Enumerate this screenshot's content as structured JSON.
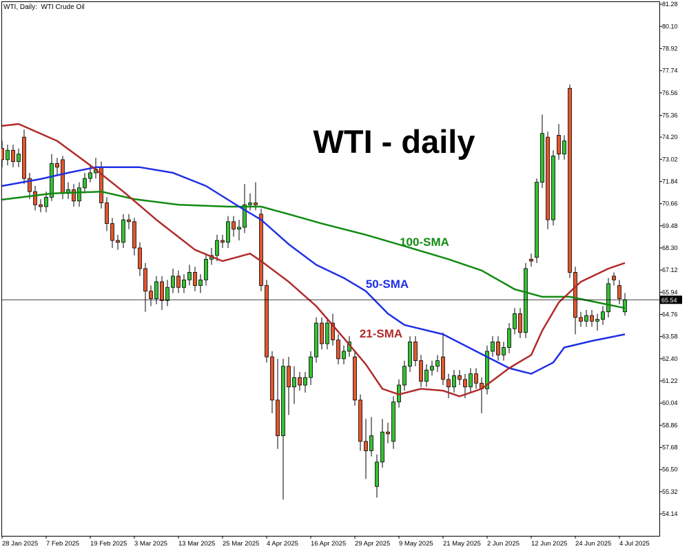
{
  "chart_data": {
    "type": "candlestick",
    "header": "WTI, Daily:  WTI Crude Oil",
    "title": "WTI - daily",
    "up_color": "#35c035",
    "down_color": "#e2572c",
    "categories": [
      "28 Jan 2025",
      null,
      null,
      null,
      null,
      null,
      null,
      null,
      "7 Feb 2025",
      null,
      null,
      null,
      null,
      null,
      null,
      null,
      "19 Feb 2025",
      null,
      null,
      null,
      null,
      null,
      null,
      null,
      "3 Mar 2025",
      null,
      null,
      null,
      null,
      null,
      null,
      null,
      "13 Mar 2025",
      null,
      null,
      null,
      null,
      null,
      null,
      null,
      "25 Mar 2025",
      null,
      null,
      null,
      null,
      null,
      null,
      null,
      "4 Apr 2025",
      null,
      null,
      null,
      null,
      null,
      null,
      null,
      "16 Apr 2025",
      null,
      null,
      null,
      null,
      null,
      null,
      null,
      "29 Apr 2025",
      null,
      null,
      null,
      null,
      null,
      null,
      null,
      "9 May 2025",
      null,
      null,
      null,
      null,
      null,
      null,
      null,
      "21 May 2025",
      null,
      null,
      null,
      null,
      null,
      null,
      null,
      "2 Jun 2025",
      null,
      null,
      null,
      null,
      null,
      null,
      null,
      "12 Jun 2025",
      null,
      null,
      null,
      null,
      null,
      null,
      null,
      "24 Jun 2025",
      null,
      null,
      null,
      null,
      null,
      null,
      null,
      "4 Jul 2025",
      null
    ],
    "open": [
      73.6,
      73.0,
      73.5,
      72.9,
      74.2,
      72.0,
      71.3,
      70.6,
      70.5,
      71.0,
      72.8,
      73.0,
      71.2,
      71.4,
      70.8,
      71.5,
      72.0,
      72.3,
      72.6,
      70.7,
      69.6,
      68.7,
      68.6,
      69.8,
      69.7,
      68.3,
      67.2,
      66.0,
      65.6,
      66.5,
      65.5,
      66.2,
      66.8,
      66.2,
      66.6,
      67.0,
      66.3,
      66.6,
      67.7,
      67.9,
      68.7,
      68.6,
      69.7,
      69.3,
      69.4,
      70.6,
      70.7,
      70.1,
      66.3,
      62.5,
      60.2,
      58.3,
      62.0,
      60.9,
      61.4,
      61.0,
      61.4,
      62.5,
      64.3,
      63.2,
      64.3,
      63.4,
      62.4,
      62.8,
      62.5,
      60.2,
      58.0,
      57.5,
      55.6,
      56.9,
      58.5,
      58.0,
      60.1,
      61.0,
      62.0,
      63.3,
      62.3,
      61.2,
      61.8,
      62.0,
      62.5,
      61.3,
      60.9,
      61.5,
      61.3,
      60.9,
      61.6,
      61.1,
      60.8,
      62.8,
      63.3,
      62.6,
      63.0,
      64.0,
      64.8,
      63.8,
      67.7,
      67.8,
      71.8,
      74.2,
      69.8,
      74.3,
      73.3,
      76.8,
      67.0,
      64.6,
      64.4,
      64.7,
      64.4,
      64.5,
      64.9,
      66.8,
      66.3,
      64.9
    ],
    "high": [
      74.0,
      73.8,
      73.8,
      73.6,
      74.6,
      72.3,
      71.6,
      70.9,
      71.3,
      73.3,
      73.1,
      73.2,
      71.8,
      71.7,
      71.8,
      72.3,
      72.7,
      73.1,
      72.9,
      71.0,
      69.9,
      69.0,
      70.1,
      70.1,
      69.9,
      68.6,
      67.5,
      66.3,
      66.8,
      66.8,
      66.6,
      67.2,
      67.1,
      66.9,
      67.4,
      67.3,
      66.9,
      68.0,
      68.3,
      69.0,
      69.0,
      70.0,
      70.0,
      69.8,
      71.7,
      71.2,
      71.8,
      70.4,
      66.6,
      62.8,
      62.4,
      62.4,
      62.5,
      62.0,
      61.7,
      61.7,
      62.8,
      64.6,
      64.6,
      64.6,
      64.8,
      63.7,
      63.1,
      63.6,
      62.8,
      60.5,
      59.2,
      59.3,
      57.3,
      59.2,
      59.0,
      60.4,
      61.3,
      62.3,
      63.6,
      63.6,
      62.6,
      62.1,
      62.3,
      62.6,
      63.8,
      61.6,
      61.8,
      61.8,
      61.6,
      61.9,
      61.9,
      61.4,
      63.1,
      63.6,
      63.6,
      63.3,
      64.3,
      65.1,
      65.1,
      67.5,
      68.0,
      72.0,
      75.4,
      74.5,
      73.5,
      74.9,
      74.3,
      77.0,
      67.3,
      64.9,
      65.0,
      65.0,
      64.8,
      65.2,
      66.7,
      67.0,
      66.6,
      65.9
    ],
    "low": [
      72.6,
      72.7,
      72.6,
      72.6,
      71.7,
      70.9,
      70.3,
      70.2,
      70.2,
      70.8,
      72.2,
      70.9,
      70.9,
      70.5,
      70.5,
      71.2,
      71.8,
      72.0,
      70.4,
      69.2,
      68.3,
      68.2,
      68.3,
      69.3,
      67.9,
      66.8,
      64.9,
      65.2,
      65.3,
      65.0,
      65.2,
      65.9,
      65.9,
      65.9,
      66.3,
      66.0,
      65.9,
      66.3,
      67.4,
      67.6,
      68.3,
      68.3,
      68.9,
      68.7,
      69.1,
      70.3,
      70.3,
      66.0,
      62.2,
      59.5,
      57.6,
      54.9,
      59.4,
      60.0,
      60.7,
      60.6,
      61.0,
      62.2,
      62.9,
      62.9,
      63.1,
      62.1,
      62.1,
      62.5,
      59.9,
      57.5,
      56.0,
      57.2,
      55.0,
      56.6,
      57.9,
      57.6,
      59.8,
      60.7,
      61.7,
      62.0,
      60.9,
      60.9,
      61.5,
      61.7,
      61.0,
      60.3,
      60.6,
      61.0,
      60.3,
      60.6,
      60.8,
      59.5,
      60.5,
      62.5,
      62.3,
      62.3,
      62.7,
      63.7,
      63.5,
      63.5,
      67.3,
      67.5,
      71.5,
      69.3,
      69.5,
      73.0,
      73.0,
      66.7,
      63.7,
      64.1,
      64.1,
      64.1,
      63.9,
      64.2,
      64.6,
      66.3,
      65.3,
      64.7
    ],
    "close": [
      73.0,
      73.5,
      72.9,
      73.3,
      72.0,
      71.3,
      70.6,
      70.5,
      71.0,
      72.8,
      72.6,
      71.2,
      71.4,
      70.8,
      71.5,
      72.0,
      72.3,
      72.5,
      70.7,
      69.6,
      68.7,
      68.6,
      69.8,
      69.7,
      68.3,
      67.2,
      66.0,
      65.6,
      66.5,
      65.5,
      66.2,
      66.8,
      66.2,
      66.6,
      67.0,
      66.3,
      66.6,
      67.7,
      67.9,
      68.7,
      68.6,
      69.7,
      69.3,
      69.4,
      70.6,
      70.7,
      70.6,
      66.3,
      62.5,
      60.2,
      58.3,
      62.0,
      60.9,
      61.4,
      61.0,
      61.4,
      62.5,
      64.3,
      63.2,
      64.3,
      63.4,
      62.4,
      62.8,
      63.3,
      60.2,
      58.0,
      57.5,
      58.3,
      56.9,
      58.5,
      58.4,
      60.1,
      61.0,
      62.0,
      63.3,
      62.3,
      61.2,
      61.8,
      62.0,
      62.3,
      61.3,
      60.9,
      61.5,
      61.3,
      60.9,
      61.6,
      61.1,
      60.8,
      62.8,
      63.3,
      62.6,
      63.0,
      64.0,
      64.8,
      63.8,
      67.2,
      67.6,
      71.8,
      74.4,
      69.8,
      73.2,
      73.3,
      74.0,
      67.0,
      64.6,
      64.4,
      64.7,
      64.4,
      64.5,
      64.9,
      66.4,
      66.6,
      65.6,
      65.54
    ],
    "series": [
      {
        "name": "100-SMA",
        "color": "#118a11",
        "x": [
          0,
          9,
          18,
          24,
          32,
          41,
          47,
          52,
          58,
          66,
          73,
          81,
          87,
          93,
          98,
          103,
          108,
          113
        ],
        "values": [
          70.87,
          71.2,
          71.3,
          70.9,
          70.6,
          70.5,
          70.5,
          70.1,
          69.6,
          69.0,
          68.4,
          67.7,
          67.1,
          66.1,
          65.7,
          65.7,
          65.4,
          65.1
        ]
      },
      {
        "name": "50-SMA",
        "color": "#1f2fe6",
        "x": [
          0,
          7,
          12,
          17,
          25,
          31,
          37,
          43,
          47,
          52,
          57,
          62,
          66,
          70,
          73,
          80,
          86,
          92,
          96,
          100,
          102,
          107,
          113
        ],
        "values": [
          71.6,
          71.97,
          72.3,
          72.6,
          72.6,
          72.3,
          71.6,
          70.5,
          69.8,
          68.5,
          67.4,
          66.7,
          66.0,
          64.8,
          64.2,
          63.7,
          62.8,
          61.9,
          61.6,
          62.2,
          63.0,
          63.35,
          63.7
        ]
      },
      {
        "name": "21-SMA",
        "color": "#b02a2a",
        "x": [
          0,
          3,
          10,
          16,
          22,
          28,
          35,
          40,
          45,
          47,
          52,
          57,
          62,
          66,
          69,
          72,
          76,
          80,
          83,
          87,
          92,
          96,
          98,
          101,
          105,
          110,
          113
        ],
        "values": [
          74.8,
          74.9,
          74.0,
          72.7,
          71.3,
          69.8,
          68.2,
          67.6,
          68.0,
          67.6,
          66.5,
          65.2,
          63.5,
          62.1,
          60.8,
          60.5,
          60.8,
          60.7,
          60.4,
          60.8,
          61.9,
          62.6,
          63.9,
          65.4,
          66.5,
          67.2,
          67.5
        ]
      }
    ],
    "ylim": [
      52.97,
      81.43
    ],
    "yticks": [
      81.28,
      {
        "value": 80.1,
        "label": "80.10"
      },
      78.92,
      77.74,
      76.56,
      75.36,
      {
        "value": 74.2,
        "label": "74.20"
      },
      73.02,
      71.84,
      70.66,
      69.48,
      {
        "value": 68.3,
        "label": "68.30"
      },
      67.12,
      65.94,
      64.76,
      63.58,
      {
        "value": 62.4,
        "label": "62.40"
      },
      61.22,
      60.04,
      58.86,
      57.68,
      {
        "value": 56.5,
        "label": "56.50"
      },
      55.32,
      54.14
    ]
  }
}
